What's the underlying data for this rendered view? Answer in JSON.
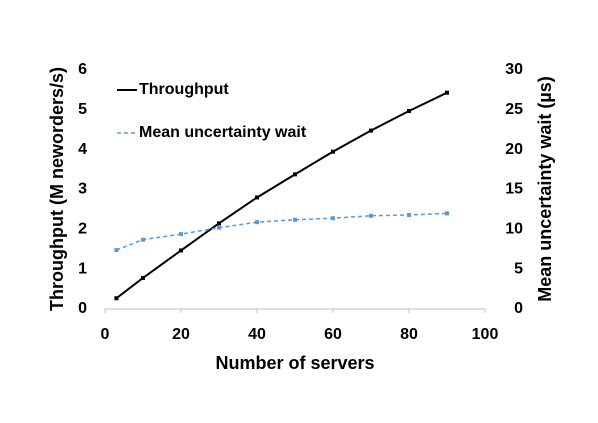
{
  "chart_data": {
    "type": "line",
    "xlabel": "Number of servers",
    "ylabel": "Throughput (M neworders/s)",
    "y2label": "Mean uncertainty wait (µs)",
    "x": [
      3,
      10,
      20,
      30,
      40,
      50,
      60,
      70,
      80,
      90
    ],
    "series": [
      {
        "name": "Throughput",
        "color": "#000000",
        "dash": false,
        "axis": "y",
        "values": [
          0.27,
          0.78,
          1.47,
          2.15,
          2.8,
          3.38,
          3.95,
          4.48,
          4.97,
          5.43
        ]
      },
      {
        "name": "Mean uncertainty wait",
        "color": "#5b9bd5",
        "dash": true,
        "axis": "y2",
        "values": [
          7.4,
          8.7,
          9.4,
          10.2,
          10.9,
          11.2,
          11.4,
          11.7,
          11.8,
          12.0
        ]
      }
    ],
    "xlim": [
      0,
      100
    ],
    "xticks": [
      0,
      20,
      40,
      60,
      80,
      100
    ],
    "ylim": [
      0,
      6
    ],
    "yticks": [
      0,
      1,
      2,
      3,
      4,
      5,
      6
    ],
    "y2lim": [
      0,
      30
    ],
    "y2ticks": [
      0,
      5,
      10,
      15,
      20,
      25,
      30
    ],
    "legend": "upper left",
    "grid": false
  }
}
